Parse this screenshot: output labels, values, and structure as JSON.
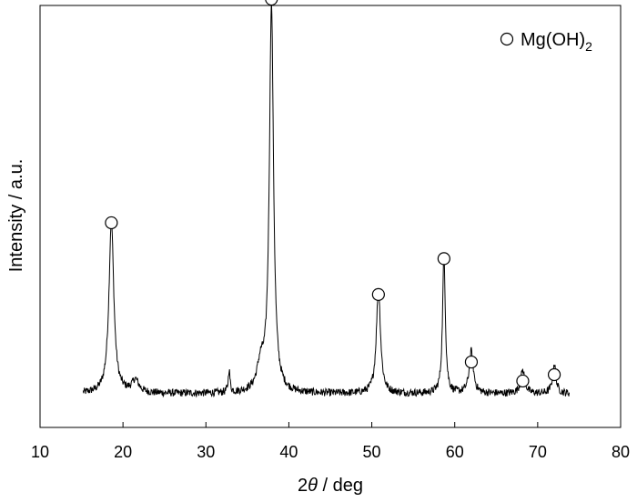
{
  "chart_data": {
    "type": "line",
    "title": "",
    "xlabel": {
      "prefix": "2",
      "symbol": "θ",
      "suffix": " / deg"
    },
    "ylabel": "Intensity / a.u.",
    "xlim": [
      10,
      80
    ],
    "ylim": [
      0,
      100
    ],
    "y_ticks_shown": false,
    "grid": false,
    "xticks": [
      10,
      20,
      30,
      40,
      50,
      60,
      70,
      80
    ],
    "xtick_labels": [
      "10",
      "20",
      "30",
      "40",
      "50",
      "60",
      "70",
      "80"
    ],
    "legend": {
      "position": "top-right",
      "marker": "open-circle",
      "label_main": "Mg(OH)",
      "label_sub": "2"
    },
    "series": [
      {
        "name": "",
        "color": "#000000",
        "baseline": 8,
        "noise": 0.9,
        "start": 15.2,
        "end": 73.8,
        "peaks": [
          {
            "x": 18.6,
            "y": 41.0,
            "width": 0.35
          },
          {
            "x": 21.5,
            "y": 3.0,
            "width": 0.5
          },
          {
            "x": 32.8,
            "y": 5.5,
            "width": 0.12
          },
          {
            "x": 36.6,
            "y": 6.0,
            "width": 0.5
          },
          {
            "x": 37.9,
            "y": 92.0,
            "width": 0.3
          },
          {
            "x": 50.8,
            "y": 25.0,
            "width": 0.3
          },
          {
            "x": 58.7,
            "y": 33.0,
            "width": 0.2
          },
          {
            "x": 62.0,
            "y": 10.0,
            "width": 0.3
          },
          {
            "x": 68.2,
            "y": 5.5,
            "width": 0.3
          },
          {
            "x": 72.0,
            "y": 7.0,
            "width": 0.25
          }
        ]
      }
    ],
    "markers": [
      {
        "x": 18.6,
        "y": 48.5
      },
      {
        "x": 37.9,
        "y": 101.5
      },
      {
        "x": 50.8,
        "y": 31.5
      },
      {
        "x": 58.7,
        "y": 40.0
      },
      {
        "x": 62.0,
        "y": 15.5
      },
      {
        "x": 68.2,
        "y": 11.0
      },
      {
        "x": 72.0,
        "y": 12.5
      }
    ]
  }
}
